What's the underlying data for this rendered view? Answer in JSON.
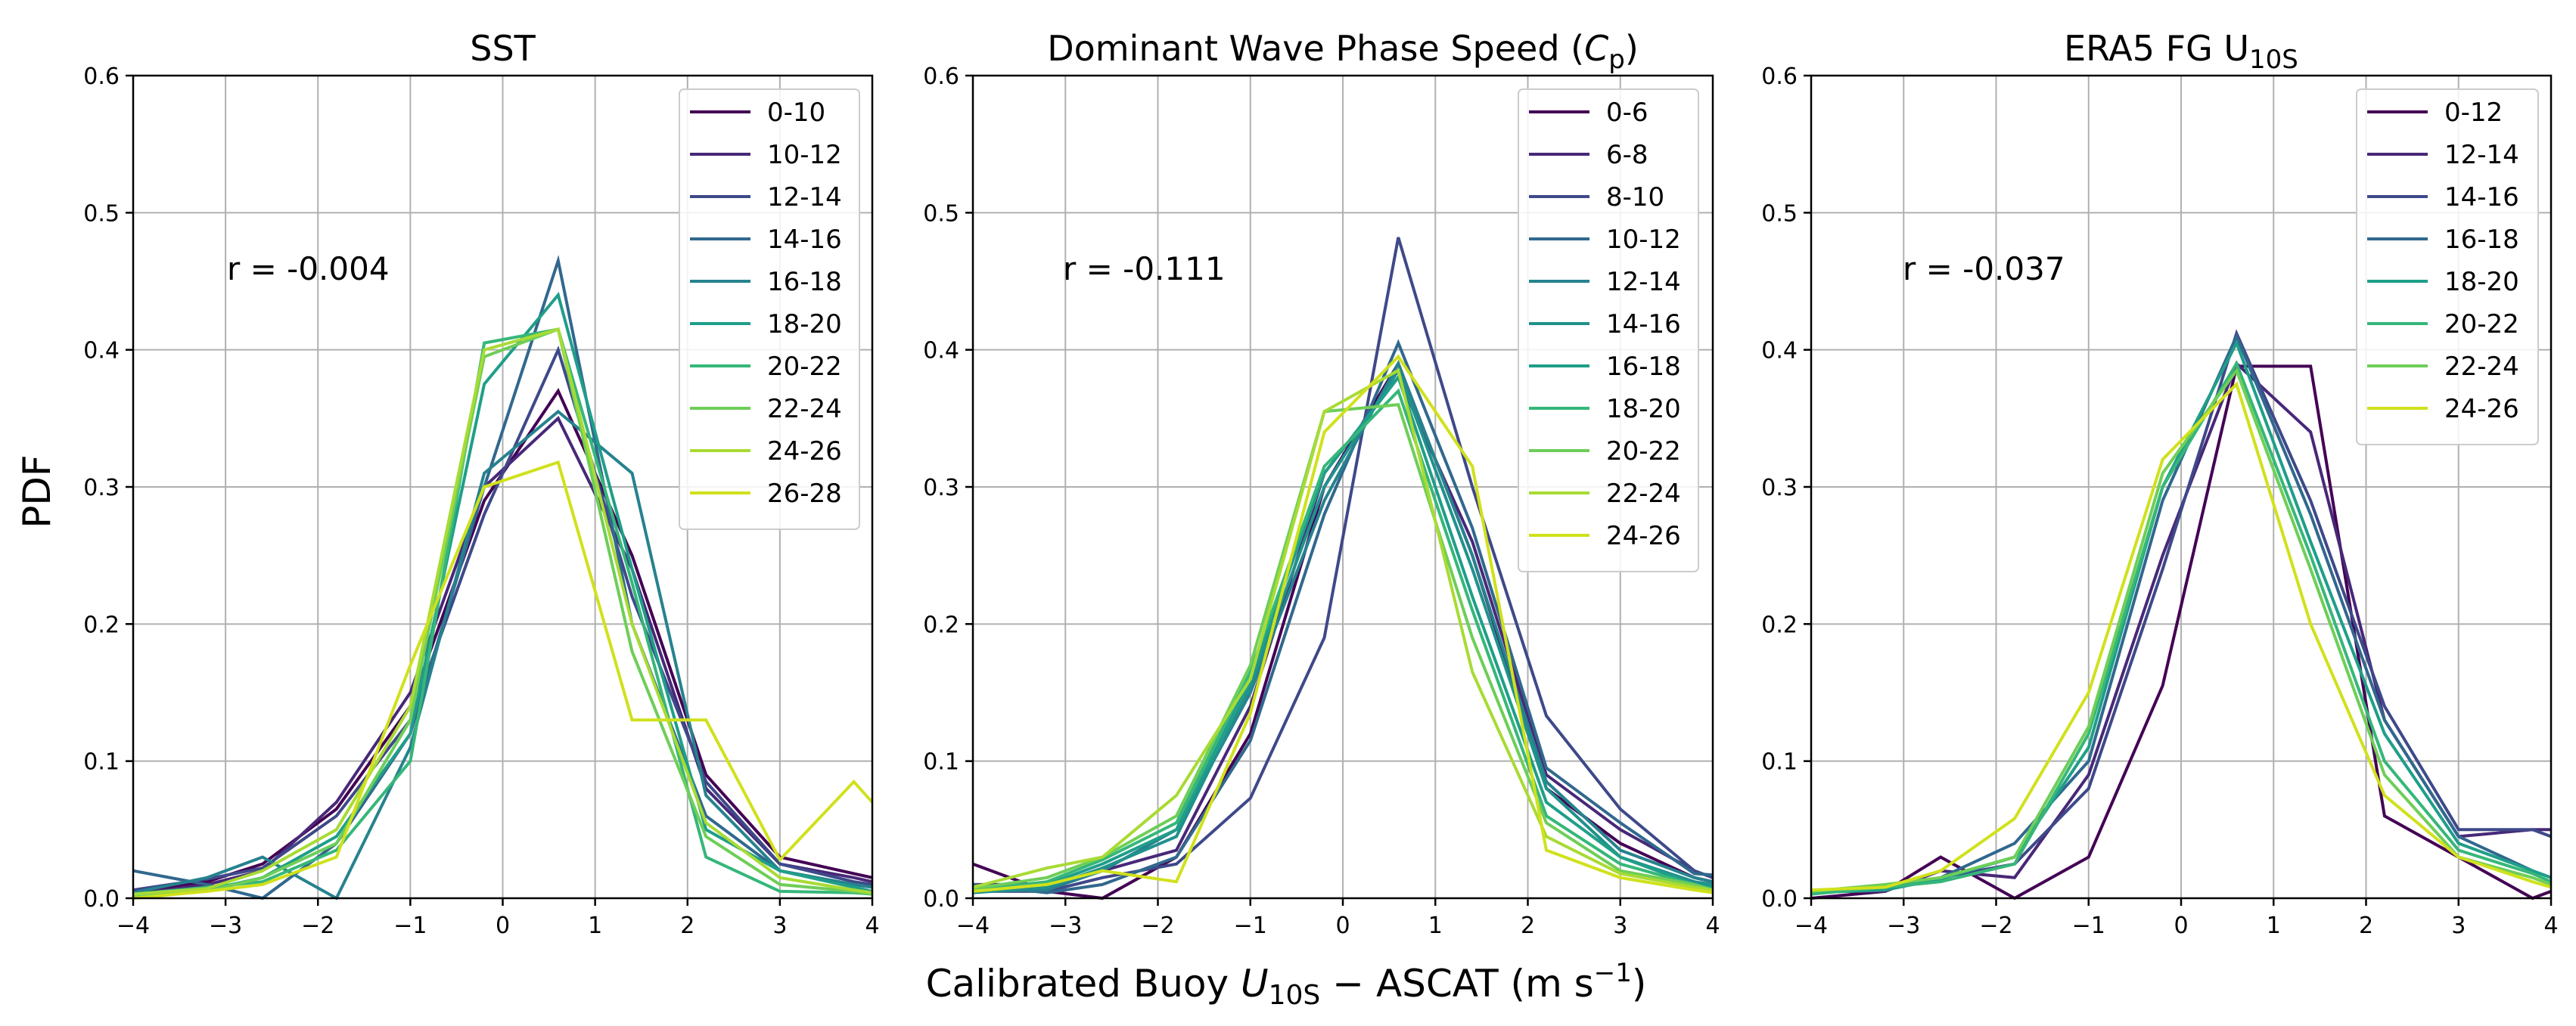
{
  "figure": {
    "ylabel": "PDF",
    "xlabel_main": "Calibrated Buoy ",
    "xlabel_var": "U",
    "xlabel_sub": "10S",
    "xlabel_rest": " − ASCAT (m s",
    "xlabel_exp": "−1",
    "xlabel_close": ")"
  },
  "chart_data": [
    {
      "type": "line",
      "title": "SST",
      "r_text": "r = -0.004",
      "xlim": [
        -4,
        4
      ],
      "ylim": [
        0,
        0.6
      ],
      "xticks": [
        "−4",
        "−3",
        "−2",
        "−1",
        "0",
        "1",
        "2",
        "3",
        "4"
      ],
      "yticks": [
        "0.0",
        "0.1",
        "0.2",
        "0.3",
        "0.4",
        "0.5",
        "0.6"
      ],
      "grid": true,
      "legend_position": "top-right",
      "x": [
        -4,
        -3.2,
        -2.6,
        -1.8,
        -1,
        -0.2,
        0.6,
        1.4,
        2.2,
        3,
        3.8,
        4
      ],
      "series": [
        {
          "name": "0-10",
          "color": "#440154",
          "values": [
            0.005,
            0.012,
            0.025,
            0.065,
            0.14,
            0.29,
            0.37,
            0.25,
            0.09,
            0.03,
            0.018,
            0.015
          ]
        },
        {
          "name": "10-12",
          "color": "#482878",
          "values": [
            0.003,
            0.01,
            0.02,
            0.07,
            0.15,
            0.3,
            0.35,
            0.24,
            0.08,
            0.025,
            0.015,
            0.012
          ]
        },
        {
          "name": "12-14",
          "color": "#3e4989",
          "values": [
            0.006,
            0.014,
            0.022,
            0.06,
            0.13,
            0.28,
            0.4,
            0.22,
            0.085,
            0.025,
            0.012,
            0.01
          ]
        },
        {
          "name": "14-16",
          "color": "#31688e",
          "values": [
            0.02,
            0.01,
            0.0,
            0.04,
            0.12,
            0.3,
            0.465,
            0.2,
            0.06,
            0.02,
            0.01,
            0.008
          ]
        },
        {
          "name": "16-18",
          "color": "#26828e",
          "values": [
            0.004,
            0.015,
            0.03,
            0.0,
            0.11,
            0.31,
            0.355,
            0.31,
            0.075,
            0.02,
            0.01,
            0.008
          ]
        },
        {
          "name": "18-20",
          "color": "#1f9e89",
          "values": [
            0.002,
            0.006,
            0.015,
            0.045,
            0.12,
            0.375,
            0.44,
            0.24,
            0.05,
            0.02,
            0.008,
            0.005
          ]
        },
        {
          "name": "20-22",
          "color": "#35b779",
          "values": [
            0.003,
            0.008,
            0.012,
            0.035,
            0.1,
            0.405,
            0.415,
            0.23,
            0.03,
            0.005,
            0.004,
            0.003
          ]
        },
        {
          "name": "22-24",
          "color": "#6ece58",
          "values": [
            0.002,
            0.005,
            0.015,
            0.04,
            0.13,
            0.395,
            0.415,
            0.18,
            0.045,
            0.01,
            0.005,
            0.003
          ]
        },
        {
          "name": "24-26",
          "color": "#a8db34",
          "values": [
            0.003,
            0.007,
            0.02,
            0.05,
            0.14,
            0.4,
            0.415,
            0.2,
            0.055,
            0.015,
            0.006,
            0.004
          ]
        },
        {
          "name": "26-28",
          "color": "#d0e11c",
          "values": [
            0.0,
            0.005,
            0.01,
            0.03,
            0.17,
            0.3,
            0.318,
            0.13,
            0.13,
            0.028,
            0.085,
            0.07
          ]
        }
      ]
    },
    {
      "type": "line",
      "title": "Dominant Wave Phase Speed (",
      "title_var": "C",
      "title_sub": "p",
      "title_close": ")",
      "r_text": "r = -0.111",
      "xlim": [
        -4,
        4
      ],
      "ylim": [
        0,
        0.6
      ],
      "xticks": [
        "−4",
        "−3",
        "−2",
        "−1",
        "0",
        "1",
        "2",
        "3",
        "4"
      ],
      "yticks": [
        "0.0",
        "0.1",
        "0.2",
        "0.3",
        "0.4",
        "0.5",
        "0.6"
      ],
      "grid": true,
      "legend_position": "top-right",
      "x": [
        -4,
        -3.2,
        -2.6,
        -1.8,
        -1,
        -0.2,
        0.6,
        1.4,
        2.2,
        3,
        3.8,
        4
      ],
      "series": [
        {
          "name": "0-6",
          "color": "#440154",
          "values": [
            0.025,
            0.005,
            0.0,
            0.03,
            0.12,
            0.3,
            0.39,
            0.25,
            0.08,
            0.04,
            0.015,
            0.012
          ]
        },
        {
          "name": "6-8",
          "color": "#482878",
          "values": [
            0.01,
            0.01,
            0.02,
            0.035,
            0.14,
            0.31,
            0.38,
            0.26,
            0.09,
            0.05,
            0.02,
            0.015
          ]
        },
        {
          "name": "8-10",
          "color": "#3e4989",
          "values": [
            0.005,
            0.005,
            0.015,
            0.025,
            0.073,
            0.19,
            0.482,
            0.3,
            0.133,
            0.065,
            0.02,
            0.015
          ]
        },
        {
          "name": "10-12",
          "color": "#31688e",
          "values": [
            0.01,
            0.004,
            0.01,
            0.03,
            0.115,
            0.28,
            0.405,
            0.27,
            0.095,
            0.055,
            0.018,
            0.017
          ]
        },
        {
          "name": "12-14",
          "color": "#26828e",
          "values": [
            0.005,
            0.006,
            0.02,
            0.05,
            0.15,
            0.29,
            0.39,
            0.25,
            0.085,
            0.035,
            0.015,
            0.012
          ]
        },
        {
          "name": "14-16",
          "color": "#21918c",
          "values": [
            0.004,
            0.008,
            0.022,
            0.045,
            0.155,
            0.3,
            0.385,
            0.24,
            0.08,
            0.03,
            0.012,
            0.01
          ]
        },
        {
          "name": "16-18",
          "color": "#1f9e89",
          "values": [
            0.006,
            0.01,
            0.025,
            0.05,
            0.16,
            0.31,
            0.38,
            0.22,
            0.07,
            0.03,
            0.01,
            0.008
          ]
        },
        {
          "name": "18-20",
          "color": "#35b779",
          "values": [
            0.006,
            0.012,
            0.028,
            0.055,
            0.165,
            0.315,
            0.37,
            0.21,
            0.06,
            0.025,
            0.01,
            0.006
          ]
        },
        {
          "name": "20-22",
          "color": "#6ece58",
          "values": [
            0.007,
            0.015,
            0.03,
            0.06,
            0.17,
            0.355,
            0.36,
            0.19,
            0.055,
            0.02,
            0.01,
            0.006
          ]
        },
        {
          "name": "22-24",
          "color": "#a8db34",
          "values": [
            0.008,
            0.022,
            0.03,
            0.075,
            0.16,
            0.355,
            0.385,
            0.165,
            0.045,
            0.018,
            0.008,
            0.006
          ]
        },
        {
          "name": "24-26",
          "color": "#d0e11c",
          "values": [
            0.005,
            0.01,
            0.02,
            0.012,
            0.135,
            0.34,
            0.395,
            0.315,
            0.035,
            0.015,
            0.006,
            0.004
          ]
        }
      ]
    },
    {
      "type": "line",
      "title": "ERA5 FG U",
      "title_sub": "10S",
      "r_text": "r = -0.037",
      "xlim": [
        -4,
        4
      ],
      "ylim": [
        0,
        0.6
      ],
      "xticks": [
        "−4",
        "−3",
        "−2",
        "−1",
        "0",
        "1",
        "2",
        "3",
        "4"
      ],
      "yticks": [
        "0.0",
        "0.1",
        "0.2",
        "0.3",
        "0.4",
        "0.5",
        "0.6"
      ],
      "grid": true,
      "legend_position": "top-right",
      "x": [
        -4,
        -3.2,
        -2.6,
        -1.8,
        -1,
        -0.2,
        0.6,
        1.4,
        2.2,
        3,
        3.8,
        4
      ],
      "series": [
        {
          "name": "0-12",
          "color": "#440154",
          "values": [
            0.0,
            0.005,
            0.03,
            0.0,
            0.03,
            0.155,
            0.388,
            0.388,
            0.06,
            0.03,
            0.0,
            0.005
          ]
        },
        {
          "name": "12-14",
          "color": "#482878",
          "values": [
            0.005,
            0.005,
            0.02,
            0.015,
            0.09,
            0.25,
            0.39,
            0.34,
            0.13,
            0.045,
            0.05,
            0.05
          ]
        },
        {
          "name": "14-16",
          "color": "#3e4989",
          "values": [
            0.005,
            0.008,
            0.015,
            0.025,
            0.08,
            0.24,
            0.412,
            0.29,
            0.14,
            0.05,
            0.05,
            0.045
          ]
        },
        {
          "name": "16-18",
          "color": "#31688e",
          "values": [
            0.004,
            0.008,
            0.015,
            0.04,
            0.1,
            0.29,
            0.41,
            0.28,
            0.13,
            0.045,
            0.02,
            0.015
          ]
        },
        {
          "name": "18-20",
          "color": "#1f9e89",
          "values": [
            0.004,
            0.006,
            0.014,
            0.03,
            0.11,
            0.3,
            0.405,
            0.26,
            0.12,
            0.04,
            0.02,
            0.015
          ]
        },
        {
          "name": "20-22",
          "color": "#35b779",
          "values": [
            0.003,
            0.008,
            0.012,
            0.025,
            0.12,
            0.3,
            0.39,
            0.25,
            0.1,
            0.035,
            0.018,
            0.012
          ]
        },
        {
          "name": "22-24",
          "color": "#6ece58",
          "values": [
            0.005,
            0.01,
            0.015,
            0.03,
            0.125,
            0.31,
            0.385,
            0.24,
            0.09,
            0.03,
            0.015,
            0.01
          ]
        },
        {
          "name": "24-26",
          "color": "#d0e11c",
          "values": [
            0.006,
            0.008,
            0.02,
            0.058,
            0.15,
            0.32,
            0.375,
            0.2,
            0.075,
            0.03,
            0.012,
            0.008
          ]
        }
      ]
    }
  ]
}
